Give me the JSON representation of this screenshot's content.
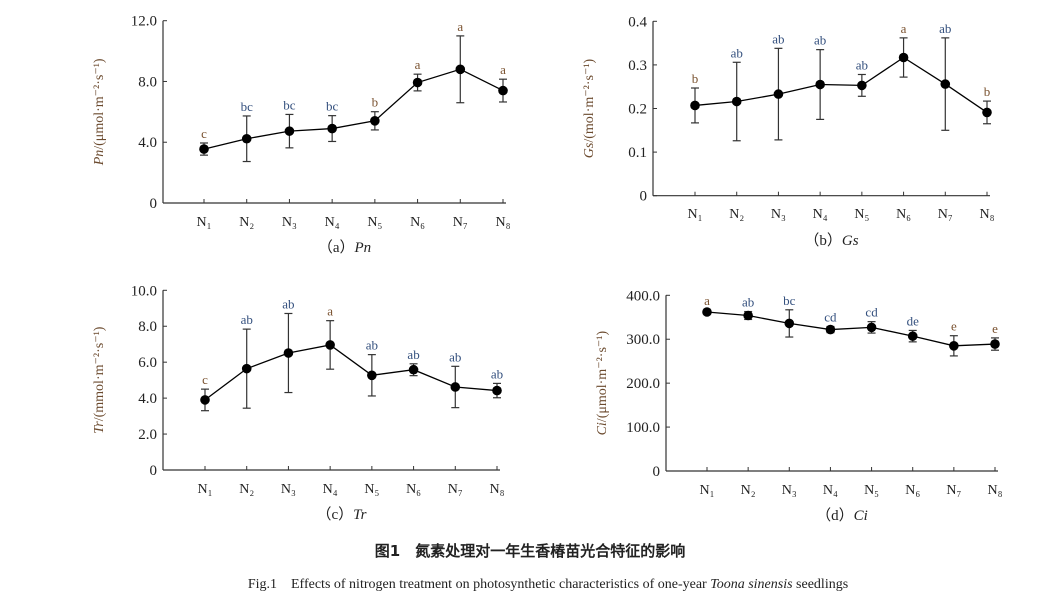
{
  "figure": {
    "caption_cn": "图1　氮素处理对一年生香椿苗光合特征的影响",
    "caption_en_prefix": "Fig.1　Effects of nitrogen treatment on photosynthetic characteristics of one-year ",
    "caption_en_species": "Toona sinensis",
    "caption_en_suffix": " seedlings"
  },
  "colors": {
    "line": "#000000",
    "axis": "#333333",
    "label": "#6b4a2e",
    "sig_blue": "#34507e",
    "sig_brown": "#7a5230"
  },
  "chart_data": [
    {
      "type": "line",
      "panel": "a",
      "caption_prefix": "（a）",
      "caption_var": "Pn",
      "ylabel_var": "Pn",
      "ylabel_unit": "/(μmol·m⁻²·s⁻¹)",
      "categories": [
        "N₁",
        "N₂",
        "N₃",
        "N₄",
        "N₅",
        "N₆",
        "N₇",
        "N₈"
      ],
      "values": [
        3.55,
        4.23,
        4.73,
        4.9,
        5.41,
        7.93,
        8.8,
        7.4
      ],
      "errors": [
        0.4,
        1.5,
        1.1,
        0.85,
        0.6,
        0.55,
        2.2,
        0.75
      ],
      "letters": [
        "c",
        "bc",
        "bc",
        "bc",
        "b",
        "a",
        "a",
        "a"
      ],
      "yticks": [
        "0",
        "4.0",
        "8.0",
        "12.0"
      ],
      "ytick_values": [
        0,
        4,
        8,
        12
      ],
      "ylim": [
        0,
        12
      ],
      "grid": false
    },
    {
      "type": "line",
      "panel": "b",
      "caption_prefix": "（b）",
      "caption_var": "Gs",
      "ylabel_var": "Gs",
      "ylabel_unit": "/(mol·m⁻²·s⁻¹)",
      "categories": [
        "N₁",
        "N₂",
        "N₃",
        "N₄",
        "N₅",
        "N₆",
        "N₇",
        "N₈"
      ],
      "values": [
        0.207,
        0.216,
        0.233,
        0.255,
        0.253,
        0.317,
        0.256,
        0.191
      ],
      "errors": [
        0.04,
        0.09,
        0.105,
        0.08,
        0.025,
        0.045,
        0.106,
        0.026
      ],
      "letters": [
        "b",
        "ab",
        "ab",
        "ab",
        "ab",
        "a",
        "ab",
        "b"
      ],
      "yticks": [
        "0",
        "0.1",
        "0.2",
        "0.3",
        "0.4"
      ],
      "ytick_values": [
        0,
        0.1,
        0.2,
        0.3,
        0.4
      ],
      "ylim": [
        0,
        0.4
      ],
      "grid": false
    },
    {
      "type": "line",
      "panel": "c",
      "caption_prefix": "（c）",
      "caption_var": "Tr",
      "ylabel_var": "Tr",
      "ylabel_unit": "/(mmol·m⁻²·s⁻¹)",
      "categories": [
        "N₁",
        "N₂",
        "N₃",
        "N₄",
        "N₅",
        "N₆",
        "N₇",
        "N₈"
      ],
      "values": [
        3.9,
        5.64,
        6.51,
        6.96,
        5.27,
        5.58,
        4.62,
        4.42
      ],
      "errors": [
        0.6,
        2.2,
        2.2,
        1.35,
        1.15,
        0.33,
        1.15,
        0.4
      ],
      "letters": [
        "c",
        "ab",
        "ab",
        "a",
        "ab",
        "ab",
        "ab",
        "ab"
      ],
      "yticks": [
        "0",
        "2.0",
        "4.0",
        "6.0",
        "8.0",
        "10.0"
      ],
      "ytick_values": [
        0,
        2,
        4,
        6,
        8,
        10
      ],
      "ylim": [
        0,
        10
      ],
      "grid": false
    },
    {
      "type": "line",
      "panel": "d",
      "caption_prefix": "（d）",
      "caption_var": "Ci",
      "ylabel_var": "Ci",
      "ylabel_unit": "/(μmol·m⁻²·s⁻¹)",
      "categories": [
        "N₁",
        "N₂",
        "N₃",
        "N₄",
        "N₅",
        "N₆",
        "N₇",
        "N₈"
      ],
      "values": [
        362,
        354,
        336,
        322,
        327,
        307,
        285,
        289
      ],
      "errors": [
        4,
        9,
        31,
        7,
        13,
        13,
        23,
        14
      ],
      "letters": [
        "a",
        "ab",
        "bc",
        "cd",
        "cd",
        "de",
        "e",
        "e"
      ],
      "yticks": [
        "0",
        "100.0",
        "200.0",
        "300.0",
        "400.0"
      ],
      "ytick_values": [
        0,
        100,
        200,
        300,
        400
      ],
      "ylim": [
        0,
        400
      ],
      "grid": false
    }
  ]
}
